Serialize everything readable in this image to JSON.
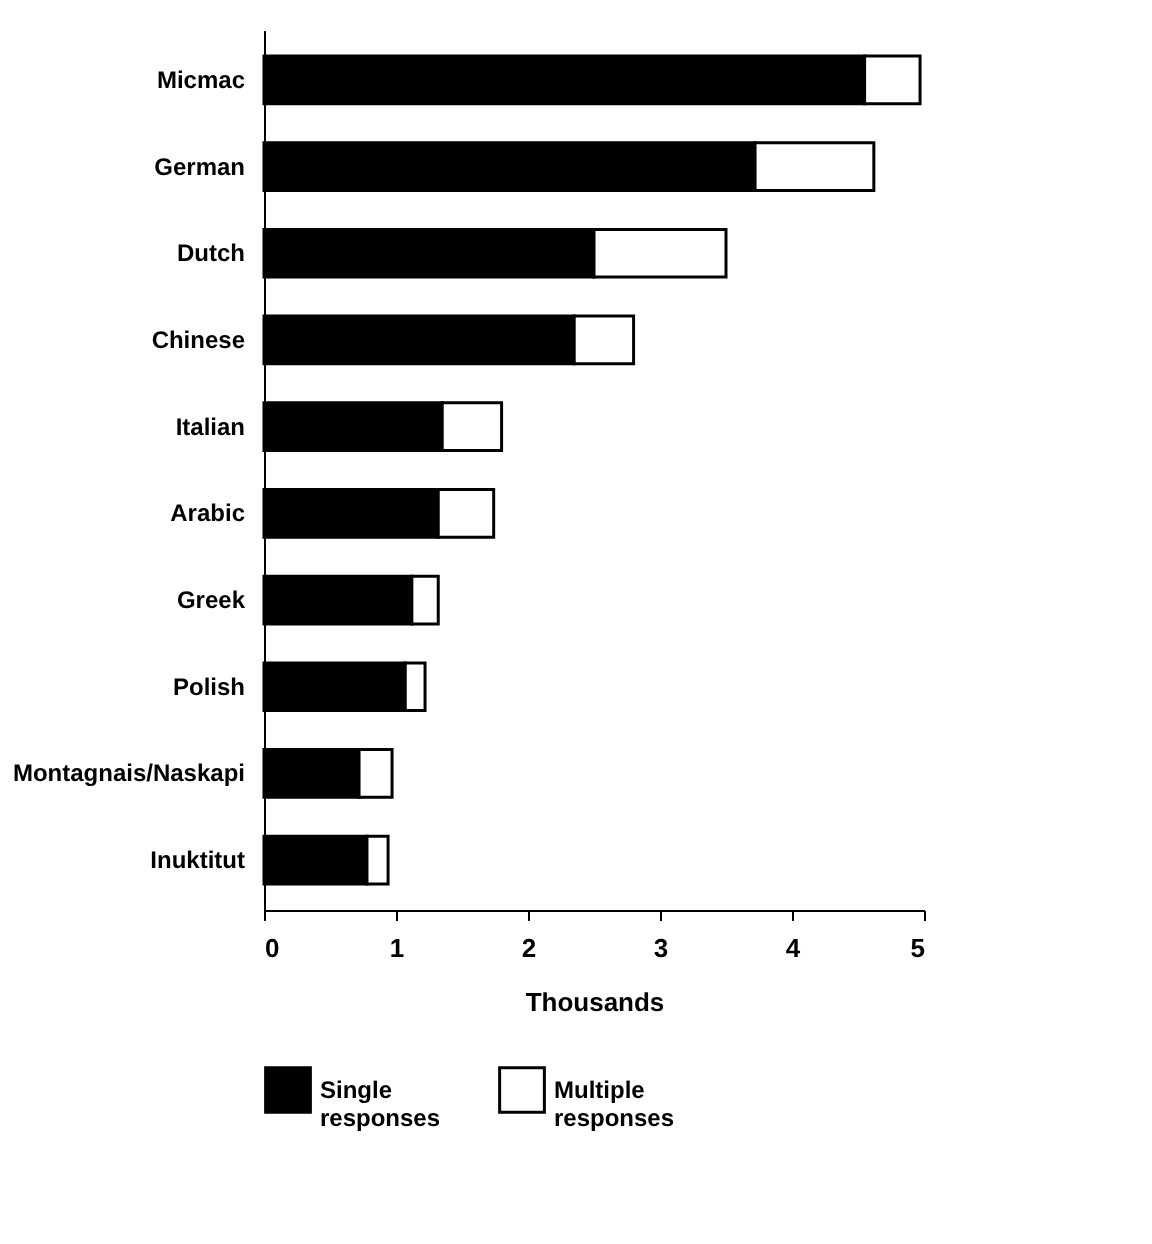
{
  "chart_data": {
    "type": "bar",
    "orientation": "horizontal",
    "stacked": true,
    "categories": [
      "Micmac",
      "German",
      "Dutch",
      "Chinese",
      "Italian",
      "Arabic",
      "Greek",
      "Polish",
      "Montagnais/Naskapi",
      "Inuktitut"
    ],
    "series": [
      {
        "name": "Single responses",
        "color": "#000000",
        "values": [
          4.55,
          3.72,
          2.5,
          2.35,
          1.35,
          1.32,
          1.12,
          1.07,
          0.72,
          0.78
        ]
      },
      {
        "name": "Multiple responses",
        "color": "#ffffff",
        "values": [
          0.42,
          0.9,
          1.0,
          0.45,
          0.45,
          0.42,
          0.2,
          0.15,
          0.25,
          0.16
        ]
      }
    ],
    "xlabel": "Thousands",
    "xlim": [
      0,
      5
    ],
    "xticks": [
      0,
      1,
      2,
      3,
      4,
      5
    ],
    "grid": false,
    "legend": "bottom"
  }
}
